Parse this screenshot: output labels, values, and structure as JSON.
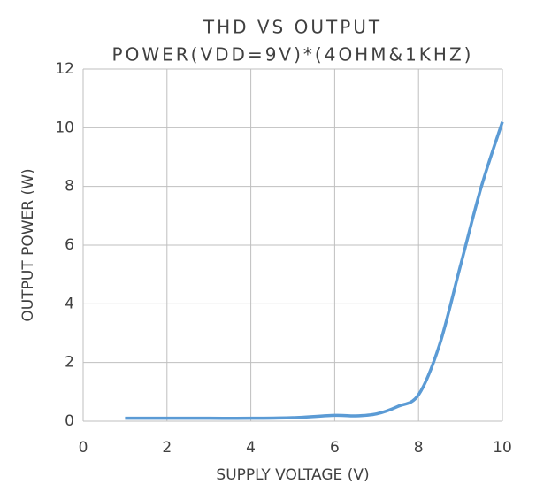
{
  "chart_data": {
    "type": "line",
    "title": [
      "THD VS OUTPUT",
      "POWER(VDD=9V)*(4OHM&1KHZ)"
    ],
    "x_label": "SUPPLY VOLTAGE (V)",
    "y_label": "OUTPUT POWER (W)",
    "x": [
      1,
      2,
      3,
      4,
      5,
      6,
      6.5,
      7,
      7.5,
      8,
      8.5,
      9,
      9.5,
      10
    ],
    "series": [
      {
        "name": "Output Power",
        "color": "#5b9bd5",
        "values": [
          0.1,
          0.1,
          0.1,
          0.1,
          0.12,
          0.2,
          0.18,
          0.25,
          0.5,
          0.9,
          2.6,
          5.3,
          8.0,
          10.2
        ]
      }
    ],
    "xlim": [
      0,
      10
    ],
    "xticks": [
      0,
      2,
      4,
      6,
      8,
      10
    ],
    "ylim": [
      0,
      12
    ],
    "yticks": [
      0,
      2,
      4,
      6,
      8,
      10,
      12
    ],
    "grid": true
  }
}
